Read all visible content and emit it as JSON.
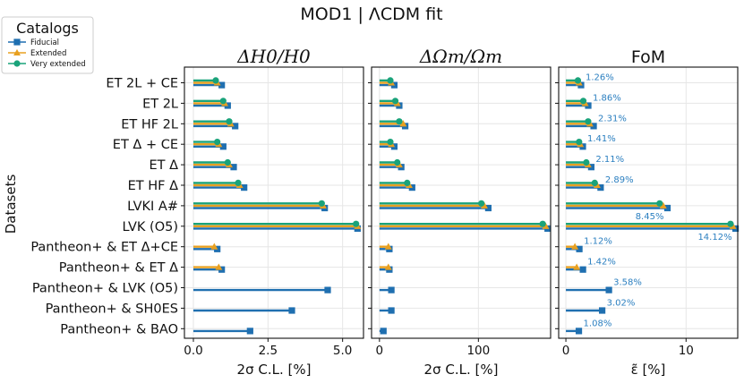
{
  "suptitle": "MOD1 | ΛCDM fit",
  "colors": {
    "fiducial": "#1f6fb0",
    "extended": "#e8a020",
    "very_extended": "#1aa37a",
    "label": "#2b7fc0",
    "grid": "#e6e6e6"
  },
  "legend": {
    "title": "Catalogs",
    "items": [
      {
        "label": "Fiducial",
        "marker": "square",
        "color": "#1f6fb0"
      },
      {
        "label": "Extended",
        "marker": "triangle",
        "color": "#e8a020"
      },
      {
        "label": "Very extended",
        "marker": "circle",
        "color": "#1aa37a"
      }
    ]
  },
  "ylabel": "Datasets",
  "chart_data": [
    {
      "type": "bar",
      "title": "ΔH0/H0",
      "xlabel": "2σ C.L. [%]",
      "xlim": [
        -0.3,
        5.7
      ],
      "xticks": [
        0.0,
        2.5,
        5.0
      ],
      "xticklabels": [
        "0.0",
        "2.5",
        "5.0"
      ],
      "categories": [
        "ET 2L + CE",
        "ET 2L",
        "ET HF 2L",
        "ET Δ + CE",
        "ET Δ",
        "ET HF Δ",
        "LVKI A#",
        "LVK (O5)",
        "Pantheon+ & ET Δ+CE",
        "Pantheon+ & ET Δ",
        "Pantheon+ & LVK (O5)",
        "Pantheon+ & SH0ES",
        "Pantheon+ & BAO"
      ],
      "series": [
        {
          "name": "Fiducial",
          "values": [
            0.95,
            1.15,
            1.4,
            1.0,
            1.35,
            1.7,
            4.4,
            5.5,
            0.8,
            0.95,
            4.5,
            3.3,
            1.9
          ]
        },
        {
          "name": "Extended",
          "values": [
            0.8,
            1.05,
            1.25,
            0.85,
            1.2,
            1.55,
            4.35,
            5.5,
            0.7,
            0.85,
            null,
            null,
            null
          ]
        },
        {
          "name": "Very extended",
          "values": [
            0.75,
            1.0,
            1.2,
            0.8,
            1.15,
            1.5,
            4.3,
            5.45,
            null,
            null,
            null,
            null,
            null
          ]
        }
      ]
    },
    {
      "type": "bar",
      "title": "ΔΩm/Ωm",
      "xlabel": "2σ C.L. [%]",
      "xlim": [
        -8,
        173
      ],
      "xticks": [
        0,
        100
      ],
      "xticklabels": [
        "0",
        "100"
      ],
      "categories": [
        "ET 2L + CE",
        "ET 2L",
        "ET HF 2L",
        "ET Δ + CE",
        "ET Δ",
        "ET HF Δ",
        "LVKI A#",
        "LVK (O5)",
        "Pantheon+ & ET Δ+CE",
        "Pantheon+ & ET Δ",
        "Pantheon+ & LVK (O5)",
        "Pantheon+ & SH0ES",
        "Pantheon+ & BAO"
      ],
      "series": [
        {
          "name": "Fiducial",
          "values": [
            15,
            20,
            26,
            15,
            22,
            33,
            110,
            170,
            10,
            10,
            12,
            12,
            4
          ]
        },
        {
          "name": "Extended",
          "values": [
            12,
            18,
            24,
            12,
            20,
            30,
            106,
            168,
            9,
            9,
            null,
            null,
            null
          ]
        },
        {
          "name": "Very extended",
          "values": [
            11,
            16,
            20,
            11,
            18,
            28,
            103,
            165,
            null,
            null,
            null,
            null,
            null
          ]
        }
      ]
    },
    {
      "type": "bar",
      "title": "FoM",
      "xlabel": "ε̃ [%]",
      "xlim": [
        -0.6,
        14.3
      ],
      "xticks": [
        0,
        10
      ],
      "xticklabels": [
        "0",
        "10"
      ],
      "categories": [
        "ET 2L + CE",
        "ET 2L",
        "ET HF 2L",
        "ET Δ + CE",
        "ET Δ",
        "ET HF Δ",
        "LVKI A#",
        "LVK (O5)",
        "Pantheon+ & ET Δ+CE",
        "Pantheon+ & ET Δ",
        "Pantheon+ & LVK (O5)",
        "Pantheon+ & SH0ES",
        "Pantheon+ & BAO"
      ],
      "series": [
        {
          "name": "Fiducial",
          "values": [
            1.26,
            1.86,
            2.31,
            1.41,
            2.11,
            2.89,
            8.45,
            14.12,
            1.12,
            1.42,
            3.58,
            3.02,
            1.08
          ]
        },
        {
          "name": "Extended",
          "values": [
            1.1,
            1.6,
            2.0,
            1.2,
            1.85,
            2.6,
            8.1,
            13.9,
            0.75,
            0.9,
            null,
            null,
            null
          ]
        },
        {
          "name": "Very extended",
          "values": [
            1.0,
            1.45,
            1.85,
            1.1,
            1.7,
            2.4,
            7.8,
            13.7,
            null,
            null,
            null,
            null,
            null
          ]
        }
      ],
      "data_labels": [
        "1.26%",
        "1.86%",
        "2.31%",
        "1.41%",
        "2.11%",
        "2.89%",
        "8.45%",
        "14.12%",
        "1.12%",
        "1.42%",
        "3.58%",
        "3.02%",
        "1.08%"
      ]
    }
  ]
}
